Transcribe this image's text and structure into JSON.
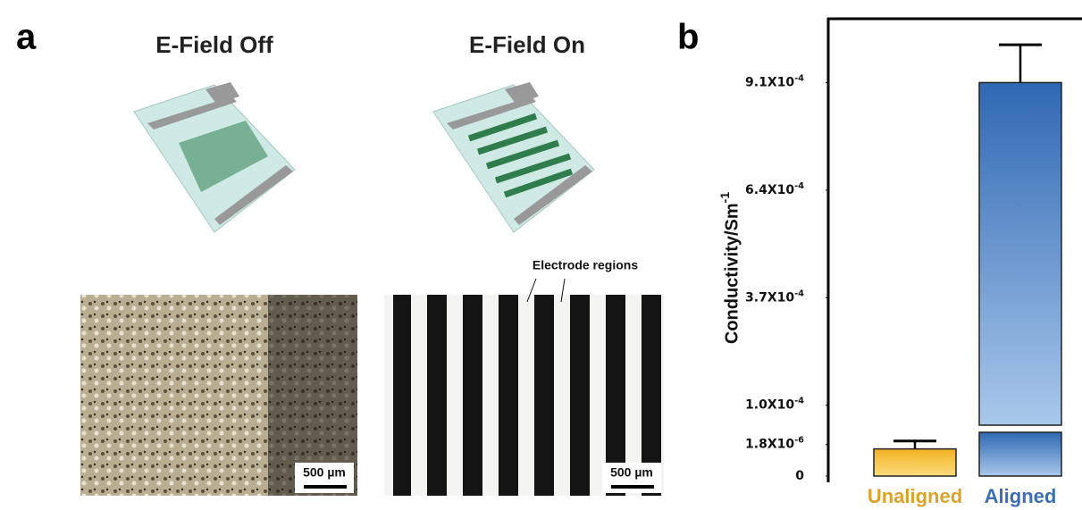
{
  "panel_a": {
    "label": "a",
    "headings": [
      "E-Field Off",
      "E-Field On"
    ],
    "annotation": "Electrode regions",
    "scale_bars": [
      "500 µm",
      "500 µm"
    ]
  },
  "chart_data": {
    "type": "bar",
    "label": "b",
    "ylabel": "Conductivity/Sm-1",
    "categories": [
      "Unaligned",
      "Aligned"
    ],
    "values": [
      1.55e-06,
      0.00091
    ],
    "errors": [
      4.5e-07,
      9.5e-05
    ],
    "colors": [
      "#f4b731",
      "#3f78c0"
    ],
    "label_colors": [
      "#dca32a",
      "#3b6db3"
    ],
    "ylim": [
      0,
      0.00105
    ],
    "ybreak": [
      2.5e-06,
      5e-05
    ],
    "yticks": [
      0,
      {
        "value": 1.8e-06,
        "label": "1.8X10-6"
      },
      {
        "value": 0.0001,
        "label": "1.0X10-4"
      },
      {
        "value": 0.00037,
        "label": "3.7X10-4"
      },
      {
        "value": 0.00064,
        "label": "6.4X10-4"
      },
      {
        "value": 0.00091,
        "label": "9.1X10-4"
      }
    ]
  }
}
